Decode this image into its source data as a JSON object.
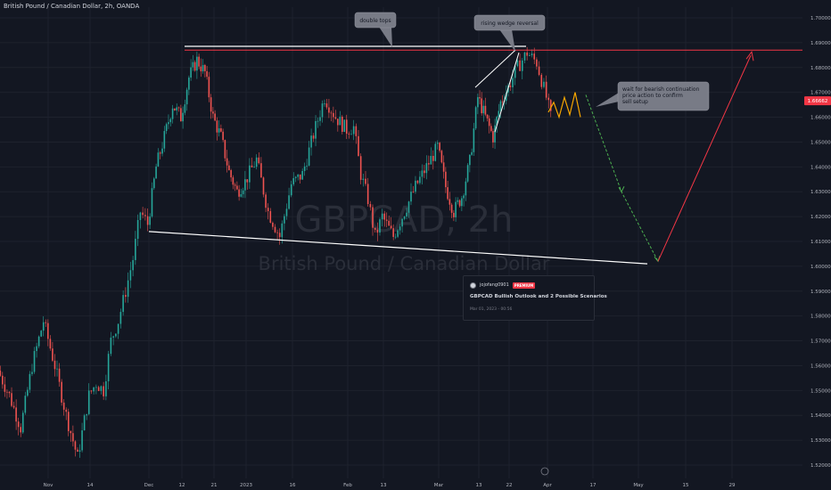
{
  "header": {
    "symbol_title": "British Pound / Canadian Dollar, 2h, OANDA"
  },
  "watermark": {
    "ticker": "GBPCAD, 2h",
    "name": "British Pound / Canadian Dollar"
  },
  "publish_card": {
    "author": "jojofang0901",
    "badge": "PREMIUM",
    "title": "GBPCAD Bullish Outlook and 2 Possible Scenarios",
    "date": "Mar 01, 2023 - 00:56"
  },
  "chart_data": {
    "type": "candlestick",
    "symbol": "GBPCAD",
    "timeframe": "2h",
    "broker": "OANDA",
    "colors": {
      "up": "#26a69a",
      "down": "#ef5350",
      "background": "#131722",
      "price_label_bg": "#f23645"
    },
    "ylim": [
      1.515,
      1.706
    ],
    "y_ticks": [
      "1.70000",
      "1.69000",
      "1.68000",
      "1.67000",
      "1.66000",
      "1.65000",
      "1.64000",
      "1.63000",
      "1.62000",
      "1.61000",
      "1.60000",
      "1.59000",
      "1.58000",
      "1.57000",
      "1.56000",
      "1.55000",
      "1.54000",
      "1.53000",
      "1.52000"
    ],
    "x_ticks": [
      "Nov",
      "14",
      "Dec",
      "12",
      "21",
      "2023",
      "16",
      "Feb",
      "13",
      "Mar",
      "13",
      "22",
      "Apr",
      "17",
      "May",
      "15",
      "29"
    ],
    "current_price": "1.66662",
    "price_path": [
      [
        "Nov",
        1.558
      ],
      [
        "Nov",
        1.548
      ],
      [
        "Nov",
        1.535
      ],
      [
        "Nov",
        1.56
      ],
      [
        "Nov",
        1.578
      ],
      [
        "Nov",
        1.56
      ],
      [
        "Nov",
        1.54
      ],
      [
        "Nov",
        1.523
      ],
      [
        "14",
        1.548
      ],
      [
        "14",
        1.553
      ],
      [
        "14",
        1.55
      ],
      [
        "14",
        1.57
      ],
      [
        "14",
        1.578
      ],
      [
        "14",
        1.59
      ],
      [
        "14",
        1.603
      ],
      [
        "14",
        1.622
      ],
      [
        "Dec",
        1.617
      ],
      [
        "Dec",
        1.64
      ],
      [
        "Dec",
        1.652
      ],
      [
        "Dec",
        1.665
      ],
      [
        "12",
        1.66
      ],
      [
        "12",
        1.676
      ],
      [
        "12",
        1.683
      ],
      [
        "12",
        1.678
      ],
      [
        "21",
        1.66
      ],
      [
        "21",
        1.652
      ],
      [
        "21",
        1.638
      ],
      [
        "21",
        1.63
      ],
      [
        "2023",
        1.634
      ],
      [
        "2023",
        1.643
      ],
      [
        "2023",
        1.622
      ],
      [
        "2023",
        1.612
      ],
      [
        "16",
        1.633
      ],
      [
        "16",
        1.637
      ],
      [
        "16",
        1.653
      ],
      [
        "16",
        1.668
      ],
      [
        "16",
        1.66
      ],
      [
        "Feb",
        1.655
      ],
      [
        "Feb",
        1.656
      ],
      [
        "Feb",
        1.637
      ],
      [
        "Feb",
        1.627
      ],
      [
        "Feb",
        1.612
      ],
      [
        "13",
        1.62
      ],
      [
        "13",
        1.612
      ],
      [
        "13",
        1.622
      ],
      [
        "13",
        1.632
      ],
      [
        "13",
        1.64
      ],
      [
        "Mar",
        1.648
      ],
      [
        "Mar",
        1.632
      ],
      [
        "Mar",
        1.622
      ],
      [
        "Mar",
        1.628
      ],
      [
        "Mar",
        1.642
      ],
      [
        "13",
        1.668
      ],
      [
        "13",
        1.66
      ],
      [
        "13",
        1.652
      ],
      [
        "13",
        1.666
      ],
      [
        "22",
        1.672
      ],
      [
        "22",
        1.68
      ],
      [
        "22",
        1.686
      ],
      [
        "22",
        1.682
      ],
      [
        "Apr",
        1.668
      ],
      [
        "Apr",
        1.66
      ]
    ],
    "projection_path": [
      [
        "Apr",
        1.662
      ],
      [
        "Apr",
        1.666
      ],
      [
        "Apr",
        1.66
      ],
      [
        "Apr",
        1.668
      ],
      [
        "Apr",
        1.661
      ],
      [
        "Apr",
        1.67
      ],
      [
        "Apr",
        1.66
      ]
    ],
    "bearish_scenario": [
      [
        "Apr",
        1.669
      ],
      [
        "17",
        1.63
      ],
      [
        "May",
        1.602
      ]
    ],
    "bullish_scenario": [
      [
        "May",
        1.602
      ],
      [
        "May",
        1.687
      ]
    ],
    "lines": {
      "resistance": 1.687,
      "double_top_line": [
        [
          "12",
          1.688
        ],
        [
          "22",
          1.688
        ]
      ],
      "support_trendline": [
        [
          "Dec",
          1.614
        ],
        [
          "May",
          1.601
        ]
      ],
      "wedge_upper": [
        [
          "13",
          1.672
        ],
        [
          "22",
          1.687
        ]
      ],
      "wedge_lower": [
        [
          "13",
          1.654
        ],
        [
          "22",
          1.686
        ]
      ]
    },
    "annotations": [
      {
        "id": "double-tops",
        "text": "double tops",
        "point_to": [
          "12",
          1.688
        ]
      },
      {
        "id": "rising-wedge",
        "text": "rising wedge reversal",
        "point_to": [
          "22",
          1.686
        ]
      },
      {
        "id": "bearish-note",
        "text": "wait for bearish continuation price action to confirm sell setup",
        "point_to": [
          "Apr",
          1.664
        ]
      }
    ]
  }
}
